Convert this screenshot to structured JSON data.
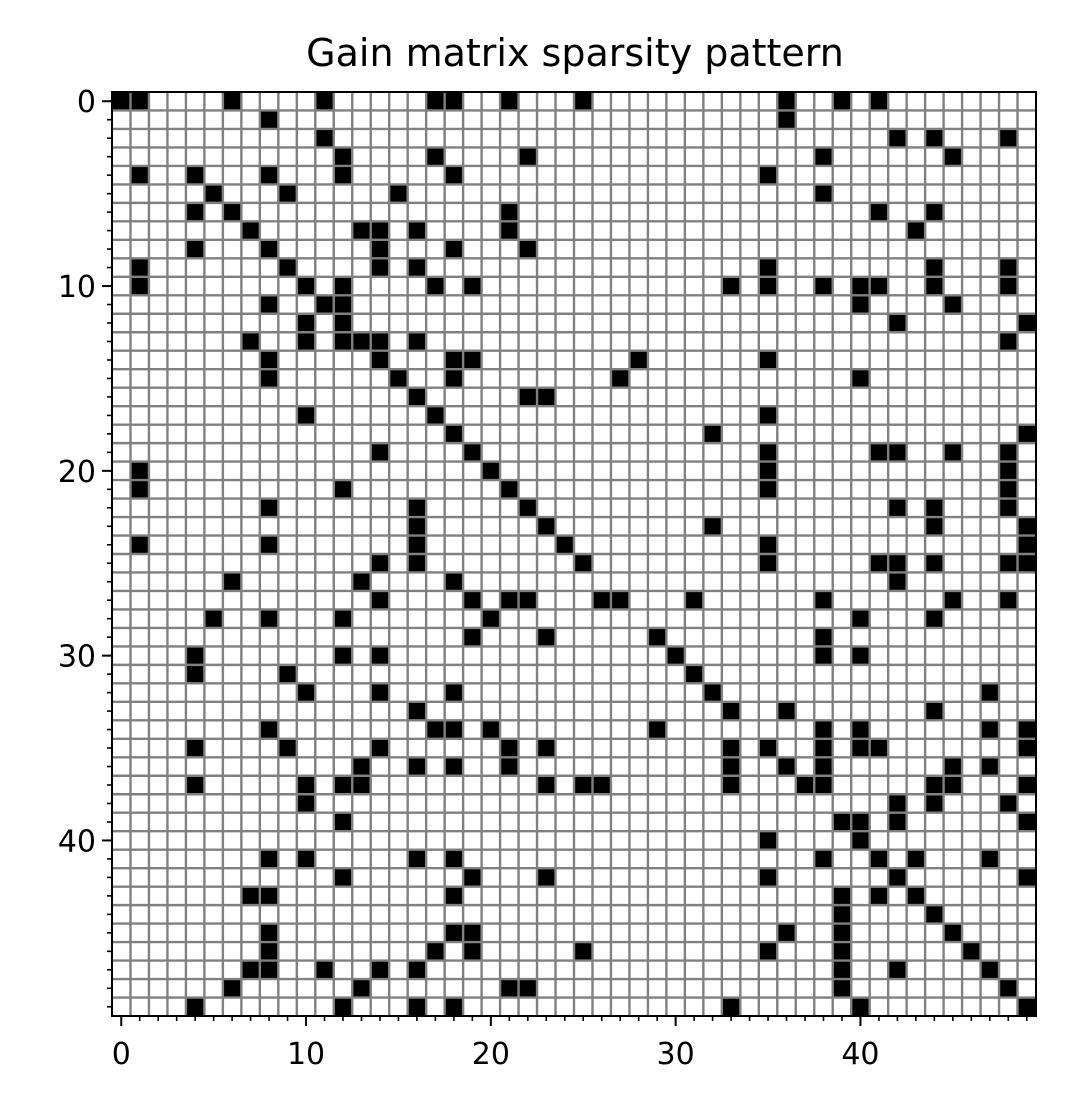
{
  "chart_data": {
    "type": "heatmap",
    "title": "Gain matrix sparsity pattern",
    "xlabel": "",
    "ylabel": "",
    "n_rows": 50,
    "n_cols": 50,
    "xlim": [
      -0.5,
      49.5
    ],
    "ylim": [
      49.5,
      -0.5
    ],
    "x_major_ticks": [
      0,
      10,
      20,
      30,
      40
    ],
    "y_major_ticks": [
      0,
      10,
      20,
      30,
      40
    ],
    "x_tick_labels": [
      "0",
      "10",
      "20",
      "30",
      "40"
    ],
    "y_tick_labels": [
      "0",
      "10",
      "20",
      "30",
      "40"
    ],
    "grid": true,
    "colors": {
      "nonzero": "#000000",
      "zero": "#ffffff",
      "grid": "#808080"
    },
    "nonzero": [
      [
        0,
        0
      ],
      [
        0,
        1
      ],
      [
        0,
        6
      ],
      [
        0,
        11
      ],
      [
        0,
        17
      ],
      [
        0,
        18
      ],
      [
        0,
        21
      ],
      [
        0,
        25
      ],
      [
        0,
        36
      ],
      [
        0,
        39
      ],
      [
        0,
        41
      ],
      [
        1,
        8
      ],
      [
        1,
        36
      ],
      [
        2,
        11
      ],
      [
        2,
        42
      ],
      [
        2,
        44
      ],
      [
        2,
        48
      ],
      [
        3,
        12
      ],
      [
        3,
        17
      ],
      [
        3,
        22
      ],
      [
        3,
        38
      ],
      [
        3,
        45
      ],
      [
        4,
        1
      ],
      [
        4,
        4
      ],
      [
        4,
        8
      ],
      [
        4,
        12
      ],
      [
        4,
        18
      ],
      [
        4,
        35
      ],
      [
        5,
        5
      ],
      [
        5,
        9
      ],
      [
        5,
        15
      ],
      [
        5,
        38
      ],
      [
        6,
        4
      ],
      [
        6,
        6
      ],
      [
        6,
        21
      ],
      [
        6,
        41
      ],
      [
        6,
        44
      ],
      [
        7,
        7
      ],
      [
        7,
        13
      ],
      [
        7,
        14
      ],
      [
        7,
        16
      ],
      [
        7,
        21
      ],
      [
        7,
        43
      ],
      [
        8,
        4
      ],
      [
        8,
        8
      ],
      [
        8,
        14
      ],
      [
        8,
        18
      ],
      [
        8,
        22
      ],
      [
        9,
        1
      ],
      [
        9,
        9
      ],
      [
        9,
        14
      ],
      [
        9,
        16
      ],
      [
        9,
        35
      ],
      [
        9,
        44
      ],
      [
        9,
        48
      ],
      [
        10,
        1
      ],
      [
        10,
        10
      ],
      [
        10,
        12
      ],
      [
        10,
        17
      ],
      [
        10,
        19
      ],
      [
        10,
        33
      ],
      [
        10,
        35
      ],
      [
        10,
        38
      ],
      [
        10,
        40
      ],
      [
        10,
        41
      ],
      [
        10,
        44
      ],
      [
        10,
        48
      ],
      [
        11,
        8
      ],
      [
        11,
        11
      ],
      [
        11,
        12
      ],
      [
        11,
        40
      ],
      [
        11,
        45
      ],
      [
        12,
        10
      ],
      [
        12,
        12
      ],
      [
        12,
        42
      ],
      [
        12,
        49
      ],
      [
        13,
        7
      ],
      [
        13,
        10
      ],
      [
        13,
        12
      ],
      [
        13,
        13
      ],
      [
        13,
        14
      ],
      [
        13,
        16
      ],
      [
        13,
        48
      ],
      [
        14,
        8
      ],
      [
        14,
        14
      ],
      [
        14,
        18
      ],
      [
        14,
        19
      ],
      [
        14,
        28
      ],
      [
        14,
        35
      ],
      [
        15,
        8
      ],
      [
        15,
        15
      ],
      [
        15,
        18
      ],
      [
        15,
        27
      ],
      [
        15,
        40
      ],
      [
        16,
        16
      ],
      [
        16,
        22
      ],
      [
        16,
        23
      ],
      [
        17,
        10
      ],
      [
        17,
        17
      ],
      [
        17,
        35
      ],
      [
        18,
        18
      ],
      [
        18,
        32
      ],
      [
        18,
        49
      ],
      [
        19,
        14
      ],
      [
        19,
        19
      ],
      [
        19,
        35
      ],
      [
        19,
        41
      ],
      [
        19,
        42
      ],
      [
        19,
        45
      ],
      [
        19,
        48
      ],
      [
        20,
        1
      ],
      [
        20,
        20
      ],
      [
        20,
        35
      ],
      [
        20,
        48
      ],
      [
        21,
        1
      ],
      [
        21,
        12
      ],
      [
        21,
        21
      ],
      [
        21,
        35
      ],
      [
        21,
        48
      ],
      [
        22,
        8
      ],
      [
        22,
        16
      ],
      [
        22,
        22
      ],
      [
        22,
        42
      ],
      [
        22,
        44
      ],
      [
        22,
        48
      ],
      [
        23,
        16
      ],
      [
        23,
        23
      ],
      [
        23,
        32
      ],
      [
        23,
        44
      ],
      [
        23,
        49
      ],
      [
        24,
        1
      ],
      [
        24,
        8
      ],
      [
        24,
        16
      ],
      [
        24,
        24
      ],
      [
        24,
        35
      ],
      [
        24,
        49
      ],
      [
        25,
        14
      ],
      [
        25,
        16
      ],
      [
        25,
        25
      ],
      [
        25,
        35
      ],
      [
        25,
        41
      ],
      [
        25,
        42
      ],
      [
        25,
        44
      ],
      [
        25,
        48
      ],
      [
        25,
        49
      ],
      [
        26,
        6
      ],
      [
        26,
        13
      ],
      [
        26,
        18
      ],
      [
        26,
        42
      ],
      [
        27,
        14
      ],
      [
        27,
        19
      ],
      [
        27,
        21
      ],
      [
        27,
        22
      ],
      [
        27,
        26
      ],
      [
        27,
        27
      ],
      [
        27,
        31
      ],
      [
        27,
        38
      ],
      [
        27,
        45
      ],
      [
        27,
        48
      ],
      [
        28,
        5
      ],
      [
        28,
        8
      ],
      [
        28,
        12
      ],
      [
        28,
        20
      ],
      [
        28,
        40
      ],
      [
        28,
        44
      ],
      [
        29,
        19
      ],
      [
        29,
        23
      ],
      [
        29,
        29
      ],
      [
        29,
        38
      ],
      [
        30,
        4
      ],
      [
        30,
        12
      ],
      [
        30,
        14
      ],
      [
        30,
        30
      ],
      [
        30,
        38
      ],
      [
        30,
        40
      ],
      [
        31,
        4
      ],
      [
        31,
        9
      ],
      [
        31,
        31
      ],
      [
        32,
        10
      ],
      [
        32,
        14
      ],
      [
        32,
        18
      ],
      [
        32,
        32
      ],
      [
        32,
        47
      ],
      [
        33,
        16
      ],
      [
        33,
        33
      ],
      [
        33,
        36
      ],
      [
        33,
        44
      ],
      [
        34,
        8
      ],
      [
        34,
        17
      ],
      [
        34,
        18
      ],
      [
        34,
        20
      ],
      [
        34,
        29
      ],
      [
        34,
        38
      ],
      [
        34,
        40
      ],
      [
        34,
        47
      ],
      [
        34,
        49
      ],
      [
        35,
        4
      ],
      [
        35,
        9
      ],
      [
        35,
        14
      ],
      [
        35,
        21
      ],
      [
        35,
        23
      ],
      [
        35,
        33
      ],
      [
        35,
        35
      ],
      [
        35,
        38
      ],
      [
        35,
        40
      ],
      [
        35,
        41
      ],
      [
        35,
        49
      ],
      [
        36,
        13
      ],
      [
        36,
        16
      ],
      [
        36,
        18
      ],
      [
        36,
        21
      ],
      [
        36,
        33
      ],
      [
        36,
        36
      ],
      [
        36,
        38
      ],
      [
        36,
        45
      ],
      [
        36,
        47
      ],
      [
        37,
        4
      ],
      [
        37,
        10
      ],
      [
        37,
        12
      ],
      [
        37,
        13
      ],
      [
        37,
        23
      ],
      [
        37,
        25
      ],
      [
        37,
        26
      ],
      [
        37,
        33
      ],
      [
        37,
        37
      ],
      [
        37,
        38
      ],
      [
        37,
        44
      ],
      [
        37,
        45
      ],
      [
        37,
        49
      ],
      [
        38,
        10
      ],
      [
        38,
        42
      ],
      [
        38,
        44
      ],
      [
        38,
        48
      ],
      [
        39,
        12
      ],
      [
        39,
        39
      ],
      [
        39,
        40
      ],
      [
        39,
        42
      ],
      [
        39,
        49
      ],
      [
        40,
        35
      ],
      [
        40,
        40
      ],
      [
        41,
        8
      ],
      [
        41,
        10
      ],
      [
        41,
        16
      ],
      [
        41,
        18
      ],
      [
        41,
        38
      ],
      [
        41,
        41
      ],
      [
        41,
        43
      ],
      [
        41,
        47
      ],
      [
        42,
        12
      ],
      [
        42,
        19
      ],
      [
        42,
        23
      ],
      [
        42,
        35
      ],
      [
        42,
        42
      ],
      [
        42,
        49
      ],
      [
        43,
        7
      ],
      [
        43,
        8
      ],
      [
        43,
        18
      ],
      [
        43,
        39
      ],
      [
        43,
        41
      ],
      [
        43,
        43
      ],
      [
        44,
        39
      ],
      [
        44,
        44
      ],
      [
        45,
        8
      ],
      [
        45,
        18
      ],
      [
        45,
        19
      ],
      [
        45,
        36
      ],
      [
        45,
        39
      ],
      [
        45,
        45
      ],
      [
        46,
        8
      ],
      [
        46,
        17
      ],
      [
        46,
        19
      ],
      [
        46,
        25
      ],
      [
        46,
        35
      ],
      [
        46,
        39
      ],
      [
        46,
        46
      ],
      [
        47,
        7
      ],
      [
        47,
        8
      ],
      [
        47,
        11
      ],
      [
        47,
        14
      ],
      [
        47,
        16
      ],
      [
        47,
        39
      ],
      [
        47,
        42
      ],
      [
        47,
        47
      ],
      [
        48,
        6
      ],
      [
        48,
        13
      ],
      [
        48,
        21
      ],
      [
        48,
        22
      ],
      [
        48,
        39
      ],
      [
        48,
        48
      ],
      [
        49,
        4
      ],
      [
        49,
        12
      ],
      [
        49,
        16
      ],
      [
        49,
        18
      ],
      [
        49,
        33
      ],
      [
        49,
        40
      ],
      [
        49,
        49
      ]
    ]
  }
}
